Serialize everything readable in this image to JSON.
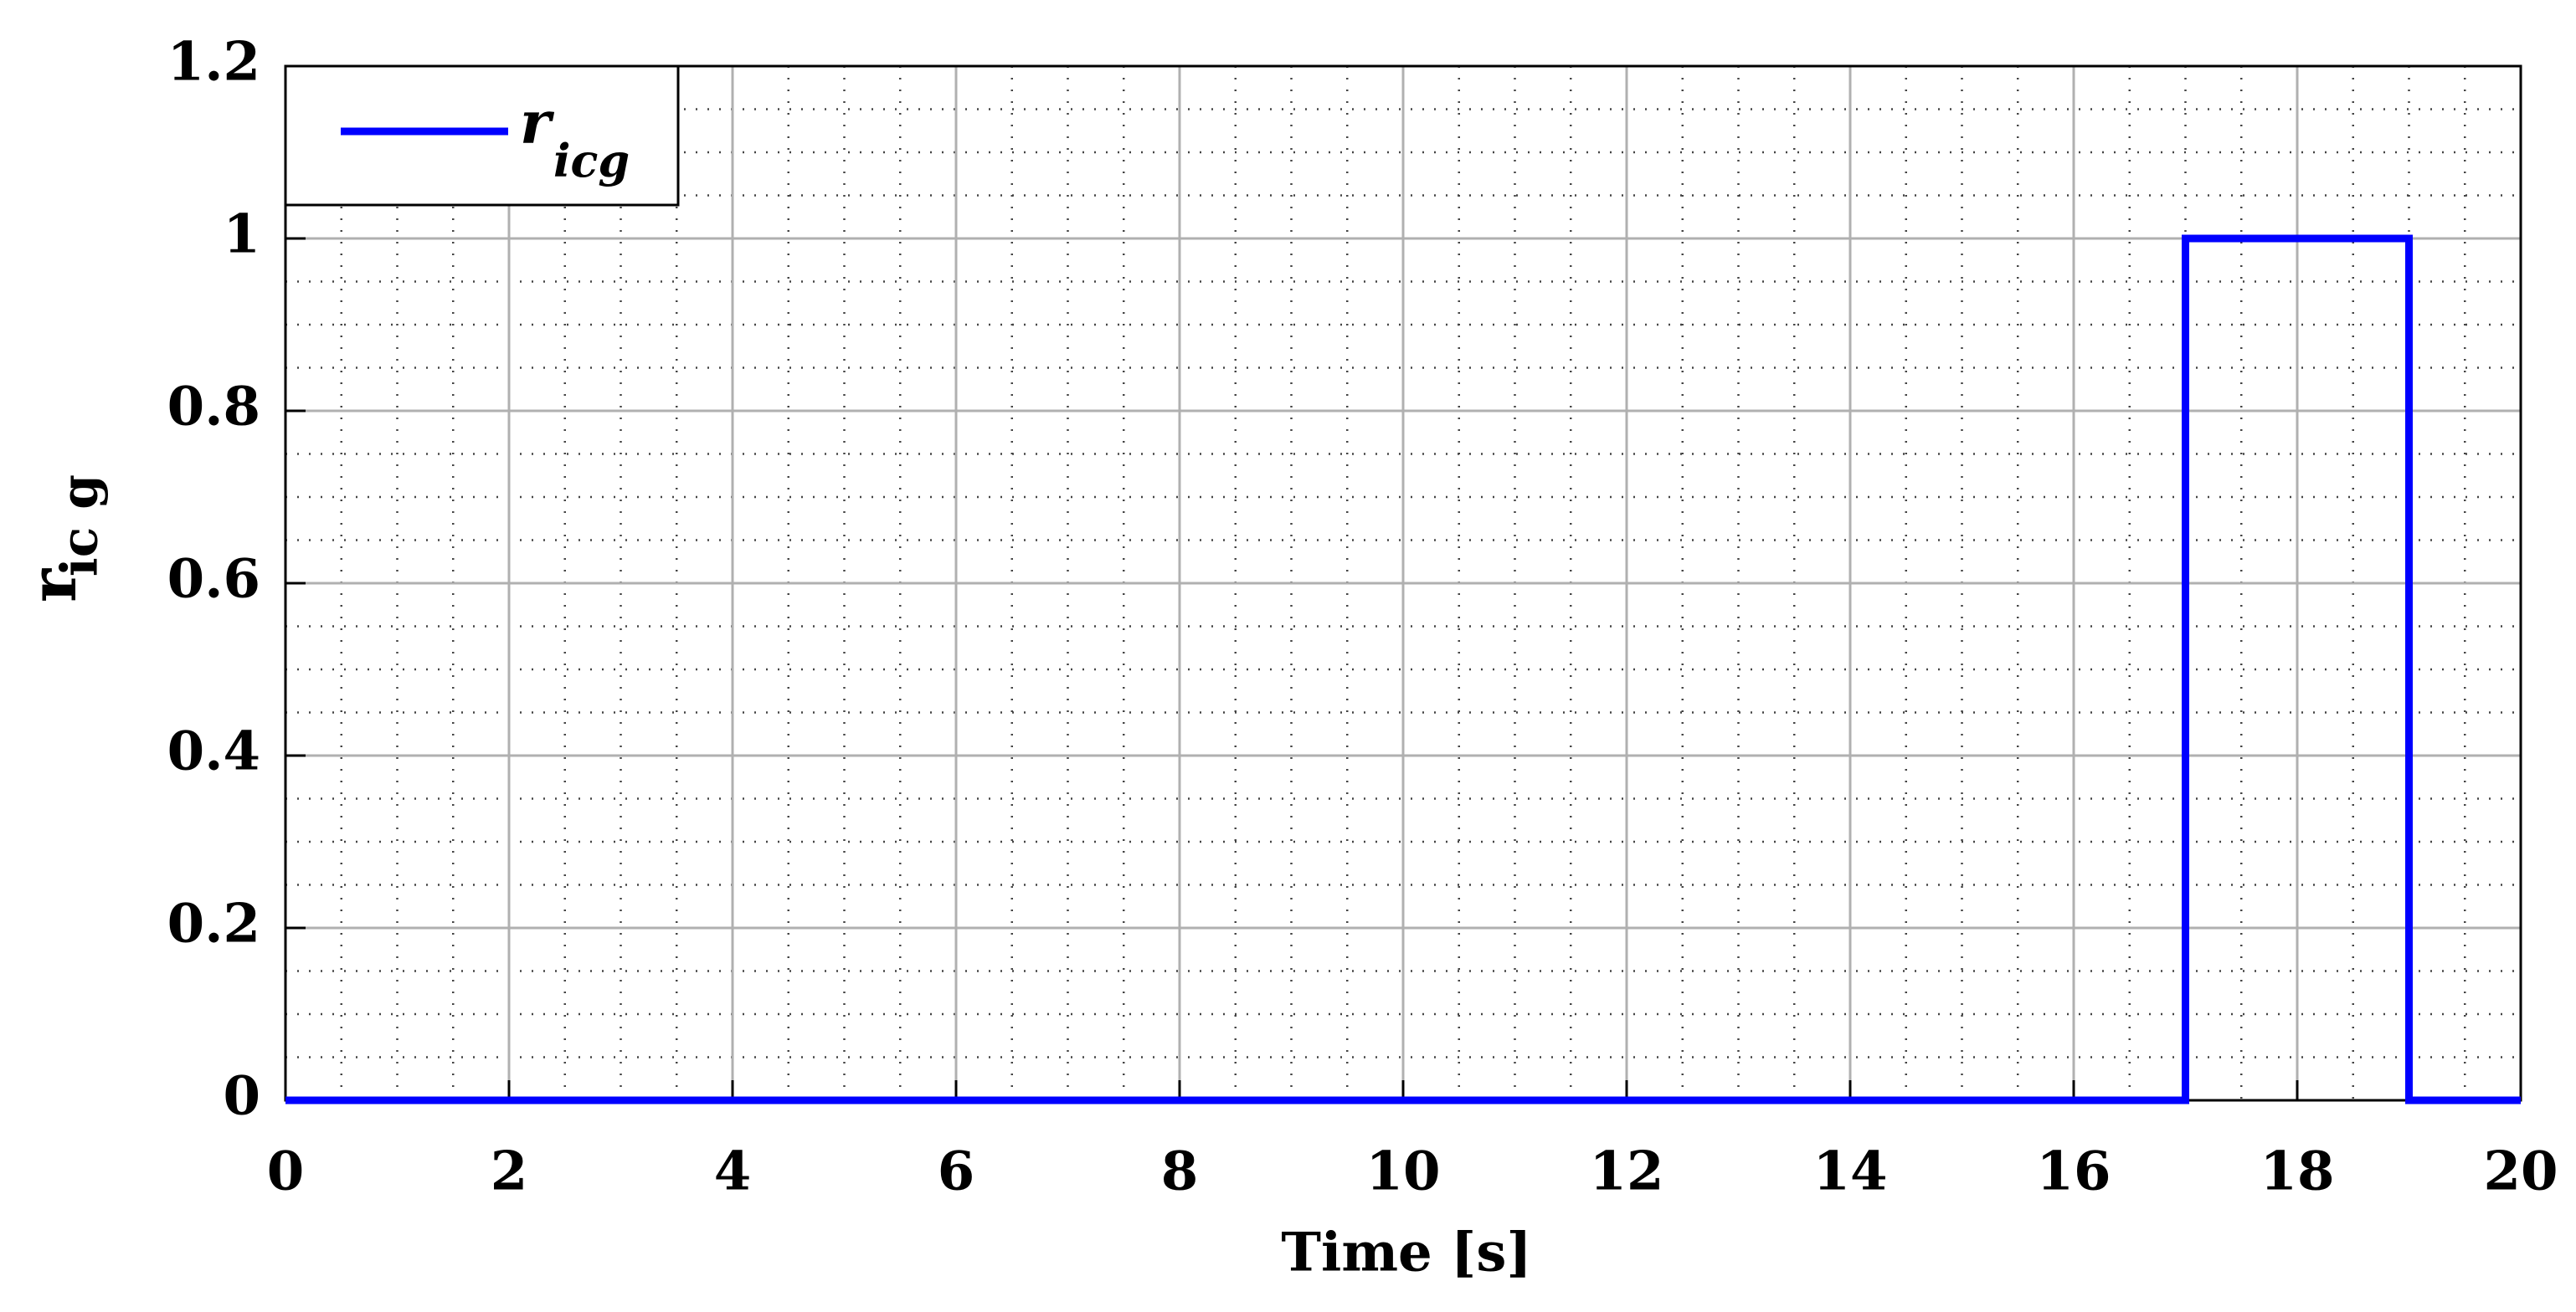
{
  "chart_data": {
    "type": "line",
    "xlabel": "Time [s]",
    "ylabel": "r",
    "ylabel_sub": "ic g",
    "x": [
      0,
      17,
      17,
      19,
      19,
      20
    ],
    "series": [
      {
        "name": "r",
        "name_sub": "icg",
        "color": "#0000ff",
        "values": [
          0,
          0,
          1,
          1,
          0,
          0
        ]
      }
    ],
    "xlim": [
      0,
      20
    ],
    "xticks": [
      0,
      2,
      4,
      6,
      8,
      10,
      12,
      14,
      16,
      18,
      20
    ],
    "ylim": [
      0,
      1.2
    ],
    "yticks": [
      0,
      0.2,
      0.4,
      0.6,
      0.8,
      1,
      1.2
    ],
    "grid": true,
    "minor_grid_divisions": 4,
    "legend": "upper left"
  }
}
